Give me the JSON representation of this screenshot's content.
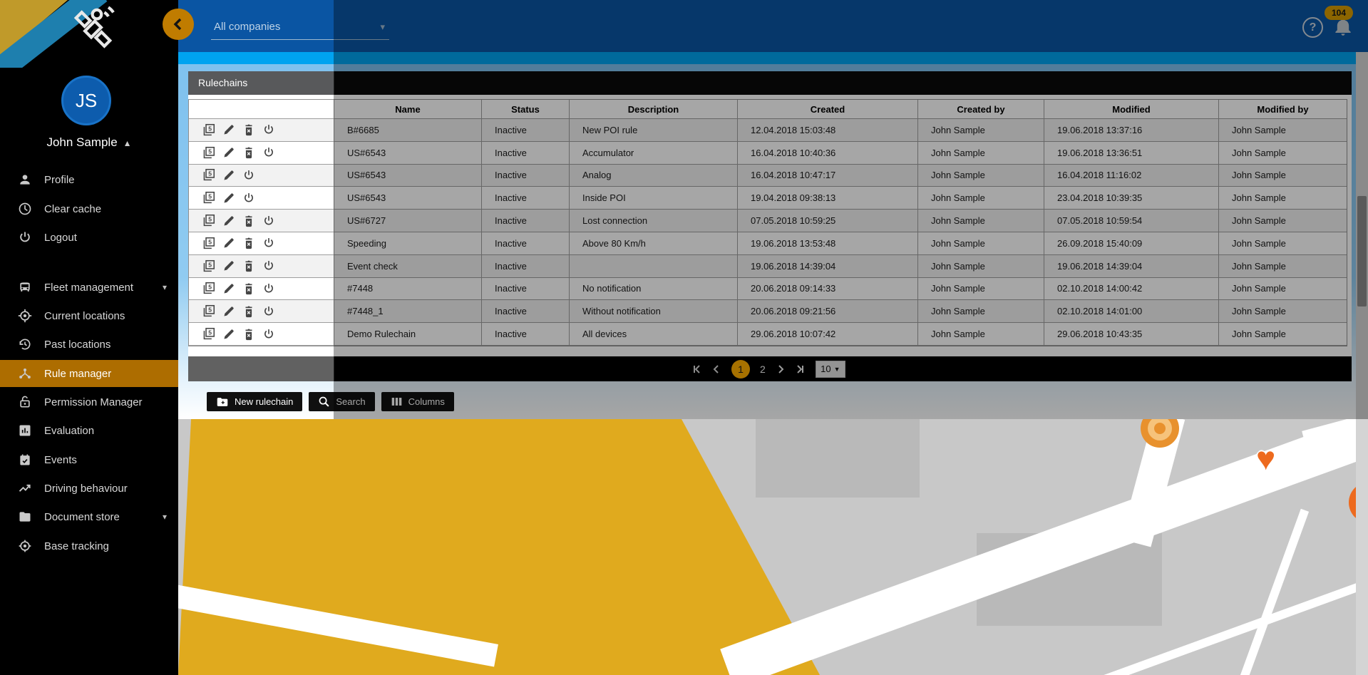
{
  "topbar": {
    "company_select": {
      "value": "All companies",
      "icon": "chevron-down-icon"
    },
    "back_button_icon": "chevron-left-icon",
    "help_icon_label": "?",
    "notifications_count": "104"
  },
  "sidebar": {
    "user": {
      "initials": "JS",
      "name": "John Sample",
      "collapse_icon": "chevron-up-icon"
    },
    "account_items": [
      {
        "label": "Profile",
        "icon": "person-icon"
      },
      {
        "label": "Clear cache",
        "icon": "clock-icon"
      },
      {
        "label": "Logout",
        "icon": "power-icon"
      }
    ],
    "nav_items": [
      {
        "label": "Fleet management",
        "icon": "fleet-icon",
        "expandable": true,
        "active": false
      },
      {
        "label": "Current locations",
        "icon": "current-location-icon",
        "expandable": false,
        "active": false
      },
      {
        "label": "Past locations",
        "icon": "history-icon",
        "expandable": false,
        "active": false
      },
      {
        "label": "Rule manager",
        "icon": "rule-hub-icon",
        "expandable": false,
        "active": true
      },
      {
        "label": "Permission Manager",
        "icon": "lock-icon",
        "expandable": false,
        "active": false
      },
      {
        "label": "Evaluation",
        "icon": "bar-chart-icon",
        "expandable": false,
        "active": false
      },
      {
        "label": "Events",
        "icon": "calendar-check-icon",
        "expandable": false,
        "active": false
      },
      {
        "label": "Driving behaviour",
        "icon": "trending-up-icon",
        "expandable": false,
        "active": false
      },
      {
        "label": "Document store",
        "icon": "folder-icon",
        "expandable": true,
        "active": false
      },
      {
        "label": "Base tracking",
        "icon": "target-icon",
        "expandable": false,
        "active": false
      }
    ]
  },
  "panel": {
    "title": "Rulechains",
    "columns": [
      "Name",
      "Status",
      "Description",
      "Created",
      "Created by",
      "Modified",
      "Modified by"
    ],
    "action_icons": [
      "copy-5-icon",
      "edit-icon",
      "delete-icon",
      "power-icon"
    ],
    "rows": [
      {
        "actions": [
          "copy",
          "edit",
          "delete",
          "power"
        ],
        "name": "B#6685",
        "status": "Inactive",
        "description": "New POI rule",
        "created": "12.04.2018 15:03:48",
        "created_by": "John Sample",
        "modified": "19.06.2018 13:37:16",
        "modified_by": "John Sample"
      },
      {
        "actions": [
          "copy",
          "edit",
          "delete",
          "power"
        ],
        "name": "US#6543",
        "status": "Inactive",
        "description": "Accumulator",
        "created": "16.04.2018 10:40:36",
        "created_by": "John Sample",
        "modified": "19.06.2018 13:36:51",
        "modified_by": "John Sample"
      },
      {
        "actions": [
          "copy",
          "edit",
          "power"
        ],
        "name": "US#6543",
        "status": "Inactive",
        "description": "Analog",
        "created": "16.04.2018 10:47:17",
        "created_by": "John Sample",
        "modified": "16.04.2018 11:16:02",
        "modified_by": "John Sample"
      },
      {
        "actions": [
          "copy",
          "edit",
          "power"
        ],
        "name": "US#6543",
        "status": "Inactive",
        "description": "Inside POI",
        "created": "19.04.2018 09:38:13",
        "created_by": "John Sample",
        "modified": "23.04.2018 10:39:35",
        "modified_by": "John Sample"
      },
      {
        "actions": [
          "copy",
          "edit",
          "delete",
          "power"
        ],
        "name": "US#6727",
        "status": "Inactive",
        "description": "Lost connection",
        "created": "07.05.2018 10:59:25",
        "created_by": "John Sample",
        "modified": "07.05.2018 10:59:54",
        "modified_by": "John Sample"
      },
      {
        "actions": [
          "copy",
          "edit",
          "delete",
          "power"
        ],
        "name": "Speeding",
        "status": "Inactive",
        "description": "Above 80 Km/h",
        "created": "19.06.2018 13:53:48",
        "created_by": "John Sample",
        "modified": "26.09.2018 15:40:09",
        "modified_by": "John Sample"
      },
      {
        "actions": [
          "copy",
          "edit",
          "delete",
          "power"
        ],
        "name": "Event check",
        "status": "Inactive",
        "description": "",
        "created": "19.06.2018 14:39:04",
        "created_by": "John Sample",
        "modified": "19.06.2018 14:39:04",
        "modified_by": "John Sample"
      },
      {
        "actions": [
          "copy",
          "edit",
          "delete",
          "power"
        ],
        "name": "#7448",
        "status": "Inactive",
        "description": "No notification",
        "created": "20.06.2018 09:14:33",
        "created_by": "John Sample",
        "modified": "02.10.2018 14:00:42",
        "modified_by": "John Sample"
      },
      {
        "actions": [
          "copy",
          "edit",
          "delete",
          "power"
        ],
        "name": "#7448_1",
        "status": "Inactive",
        "description": "Without notification",
        "created": "20.06.2018 09:21:56",
        "created_by": "John Sample",
        "modified": "02.10.2018 14:01:00",
        "modified_by": "John Sample"
      },
      {
        "actions": [
          "copy",
          "edit",
          "delete",
          "power"
        ],
        "name": "Demo Rulechain",
        "status": "Inactive",
        "description": "All devices",
        "created": "29.06.2018 10:07:42",
        "created_by": "John Sample",
        "modified": "29.06.2018 10:43:35",
        "modified_by": "John Sample"
      }
    ]
  },
  "pagination": {
    "first_icon": "first-page-icon",
    "prev_icon": "chevron-left-icon",
    "current_page": "1",
    "next_page_label": "2",
    "next_icon": "chevron-right-icon",
    "last_icon": "last-page-icon",
    "page_size": "10"
  },
  "actions_bar": [
    {
      "label": "New rulechain",
      "icon": "folder-plus-icon"
    },
    {
      "label": "Search",
      "icon": "search-icon"
    },
    {
      "label": "Columns",
      "icon": "columns-icon"
    }
  ],
  "colors": {
    "topbar_blue": "#0a55a3",
    "accent_cyan": "#00a3f0",
    "active_nav_orange": "#ad6d00",
    "page_orange": "#ffae00",
    "badge_amber": "#d89c00",
    "panel_header_gray": "#58595b",
    "map_yellow": "#e0aa1e",
    "map_poi_orange": "#ed6a1e"
  }
}
